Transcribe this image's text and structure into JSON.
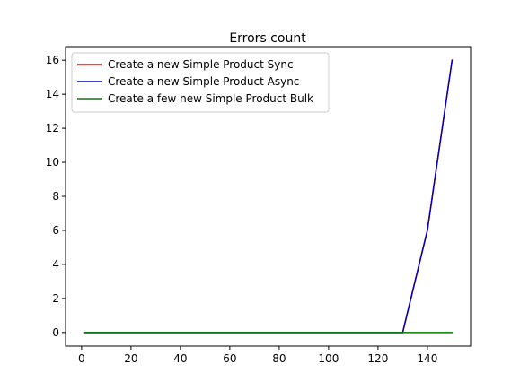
{
  "chart_data": {
    "type": "line",
    "title": "Errors count",
    "xlabel": "",
    "ylabel": "",
    "xlim": [
      -6.5,
      157.5
    ],
    "ylim": [
      -0.8,
      16.8
    ],
    "xticks": [
      0,
      20,
      40,
      60,
      80,
      100,
      120,
      140
    ],
    "yticks": [
      0,
      2,
      4,
      6,
      8,
      10,
      12,
      14,
      16
    ],
    "grid": false,
    "legend_position": "top-left",
    "series": [
      {
        "name": "Create a new Simple Product Sync",
        "color": "#ff0000",
        "x": [
          1,
          130,
          140,
          150
        ],
        "y": [
          0,
          0,
          6,
          16
        ]
      },
      {
        "name": "Create a new Simple Product Async",
        "color": "#0000bf",
        "x": [
          1,
          130,
          140,
          150
        ],
        "y": [
          0,
          0,
          6,
          16
        ]
      },
      {
        "name": "Create a few new Simple Product Bulk",
        "color": "#008000",
        "x": [
          1,
          150
        ],
        "y": [
          0,
          0
        ]
      }
    ]
  }
}
